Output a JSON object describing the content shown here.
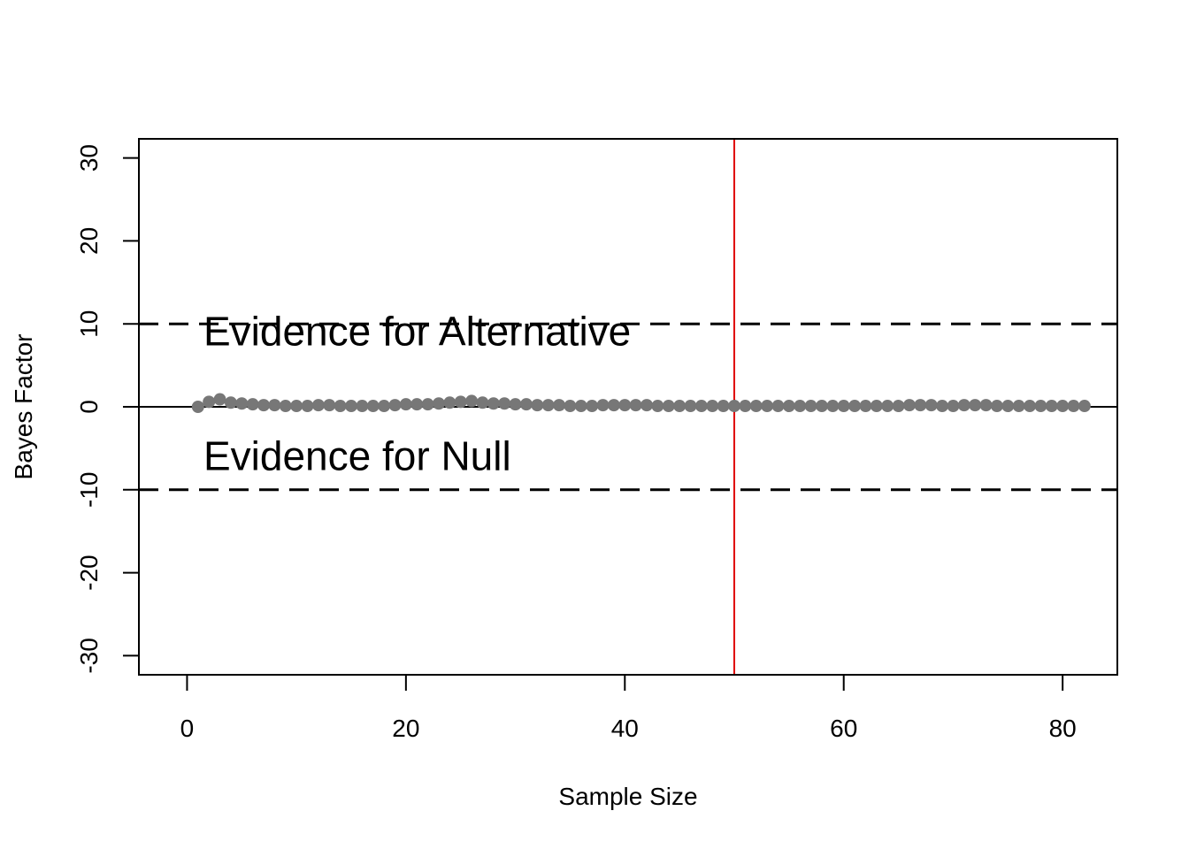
{
  "chart_data": {
    "type": "scatter",
    "title": "",
    "xlabel": "Sample Size",
    "ylabel": "Bayes Factor",
    "xlim": [
      -4.4,
      85
    ],
    "ylim": [
      -32.3,
      32.3
    ],
    "x_ticks": [
      0,
      20,
      40,
      60,
      80
    ],
    "y_ticks": [
      -30,
      -20,
      -10,
      0,
      10,
      20,
      30
    ],
    "grid": false,
    "series": [
      {
        "marker": "filled-circle",
        "color": "#777777",
        "x": [
          1,
          2,
          3,
          4,
          5,
          6,
          7,
          8,
          9,
          10,
          11,
          12,
          13,
          14,
          15,
          16,
          17,
          18,
          19,
          20,
          21,
          22,
          23,
          24,
          25,
          26,
          27,
          28,
          29,
          30,
          31,
          32,
          33,
          34,
          35,
          36,
          37,
          38,
          39,
          40,
          41,
          42,
          43,
          44,
          45,
          46,
          47,
          48,
          49,
          50,
          51,
          52,
          53,
          54,
          55,
          56,
          57,
          58,
          59,
          60,
          61,
          62,
          63,
          64,
          65,
          66,
          67,
          68,
          69,
          70,
          71,
          72,
          73,
          74,
          75,
          76,
          77,
          78,
          79,
          80,
          81,
          82
        ],
        "y": [
          0.0,
          0.6,
          0.9,
          0.5,
          0.4,
          0.3,
          0.2,
          0.2,
          0.1,
          0.1,
          0.1,
          0.2,
          0.2,
          0.1,
          0.1,
          0.1,
          0.1,
          0.1,
          0.2,
          0.3,
          0.3,
          0.3,
          0.4,
          0.5,
          0.6,
          0.7,
          0.5,
          0.4,
          0.4,
          0.3,
          0.3,
          0.2,
          0.2,
          0.2,
          0.1,
          0.1,
          0.1,
          0.2,
          0.2,
          0.2,
          0.2,
          0.2,
          0.1,
          0.1,
          0.1,
          0.1,
          0.1,
          0.1,
          0.1,
          0.1,
          0.1,
          0.1,
          0.1,
          0.1,
          0.1,
          0.1,
          0.1,
          0.1,
          0.1,
          0.1,
          0.1,
          0.1,
          0.1,
          0.1,
          0.1,
          0.2,
          0.2,
          0.2,
          0.1,
          0.1,
          0.2,
          0.2,
          0.2,
          0.1,
          0.1,
          0.1,
          0.1,
          0.1,
          0.1,
          0.1,
          0.1,
          0.1
        ]
      }
    ],
    "reference_lines": [
      {
        "orientation": "horizontal",
        "value": 10,
        "style": "dashed",
        "color": "#000000"
      },
      {
        "orientation": "horizontal",
        "value": -10,
        "style": "dashed",
        "color": "#000000"
      },
      {
        "orientation": "horizontal",
        "value": 0,
        "style": "solid",
        "color": "#000000"
      },
      {
        "orientation": "vertical",
        "value": 50,
        "style": "solid",
        "color": "#e00000"
      }
    ],
    "annotations": [
      {
        "text": "Evidence for Alternative",
        "x": 1.5,
        "y": 7.4
      },
      {
        "text": "Evidence for Null",
        "x": 1.5,
        "y": -7.6
      }
    ]
  }
}
